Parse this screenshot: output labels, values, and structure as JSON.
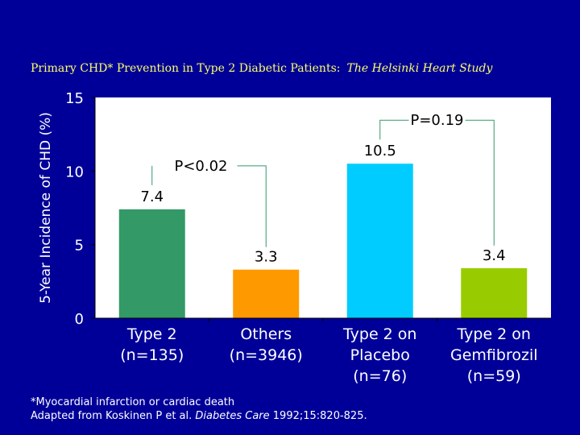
{
  "header": {
    "title": "Primary CHD* Prevention in Type 2 Diabetic Patients:",
    "subtitle": "The Helsinki Heart Study"
  },
  "footnote": {
    "line1": "*Myocardial infarction or cardiac death",
    "line2_prefix": "Adapted from Koskinen P et al. ",
    "line2_journal": "Diabetes Care",
    "line2_suffix": " 1992;15:820-825."
  },
  "colors": {
    "background": "#000099",
    "title": "#ffff66",
    "plot_area": "#ffffff"
  },
  "chart_data": {
    "type": "bar",
    "ylabel": "5-Year Incidence of CHD (%)",
    "xlabel": "",
    "ylim": [
      0,
      15
    ],
    "yticks": [
      0,
      5,
      10,
      15
    ],
    "grid": false,
    "categories": [
      [
        "Type 2",
        "(n=135)"
      ],
      [
        "Others",
        "(n=3946)"
      ],
      [
        "Type 2 on",
        "Placebo",
        "(n=76)"
      ],
      [
        "Type 2 on",
        "Gemfibrozil",
        "(n=59)"
      ]
    ],
    "values": [
      7.4,
      3.3,
      10.5,
      3.4
    ],
    "value_labels": [
      "7.4",
      "3.3",
      "10.5",
      "3.4"
    ],
    "bar_colors": [
      "#339966",
      "#ff9900",
      "#00ccff",
      "#99cc00"
    ],
    "annotations": [
      {
        "text": "P<0.02",
        "from": 0,
        "to": 1
      },
      {
        "text": "P=0.19",
        "from": 2,
        "to": 3
      }
    ]
  }
}
